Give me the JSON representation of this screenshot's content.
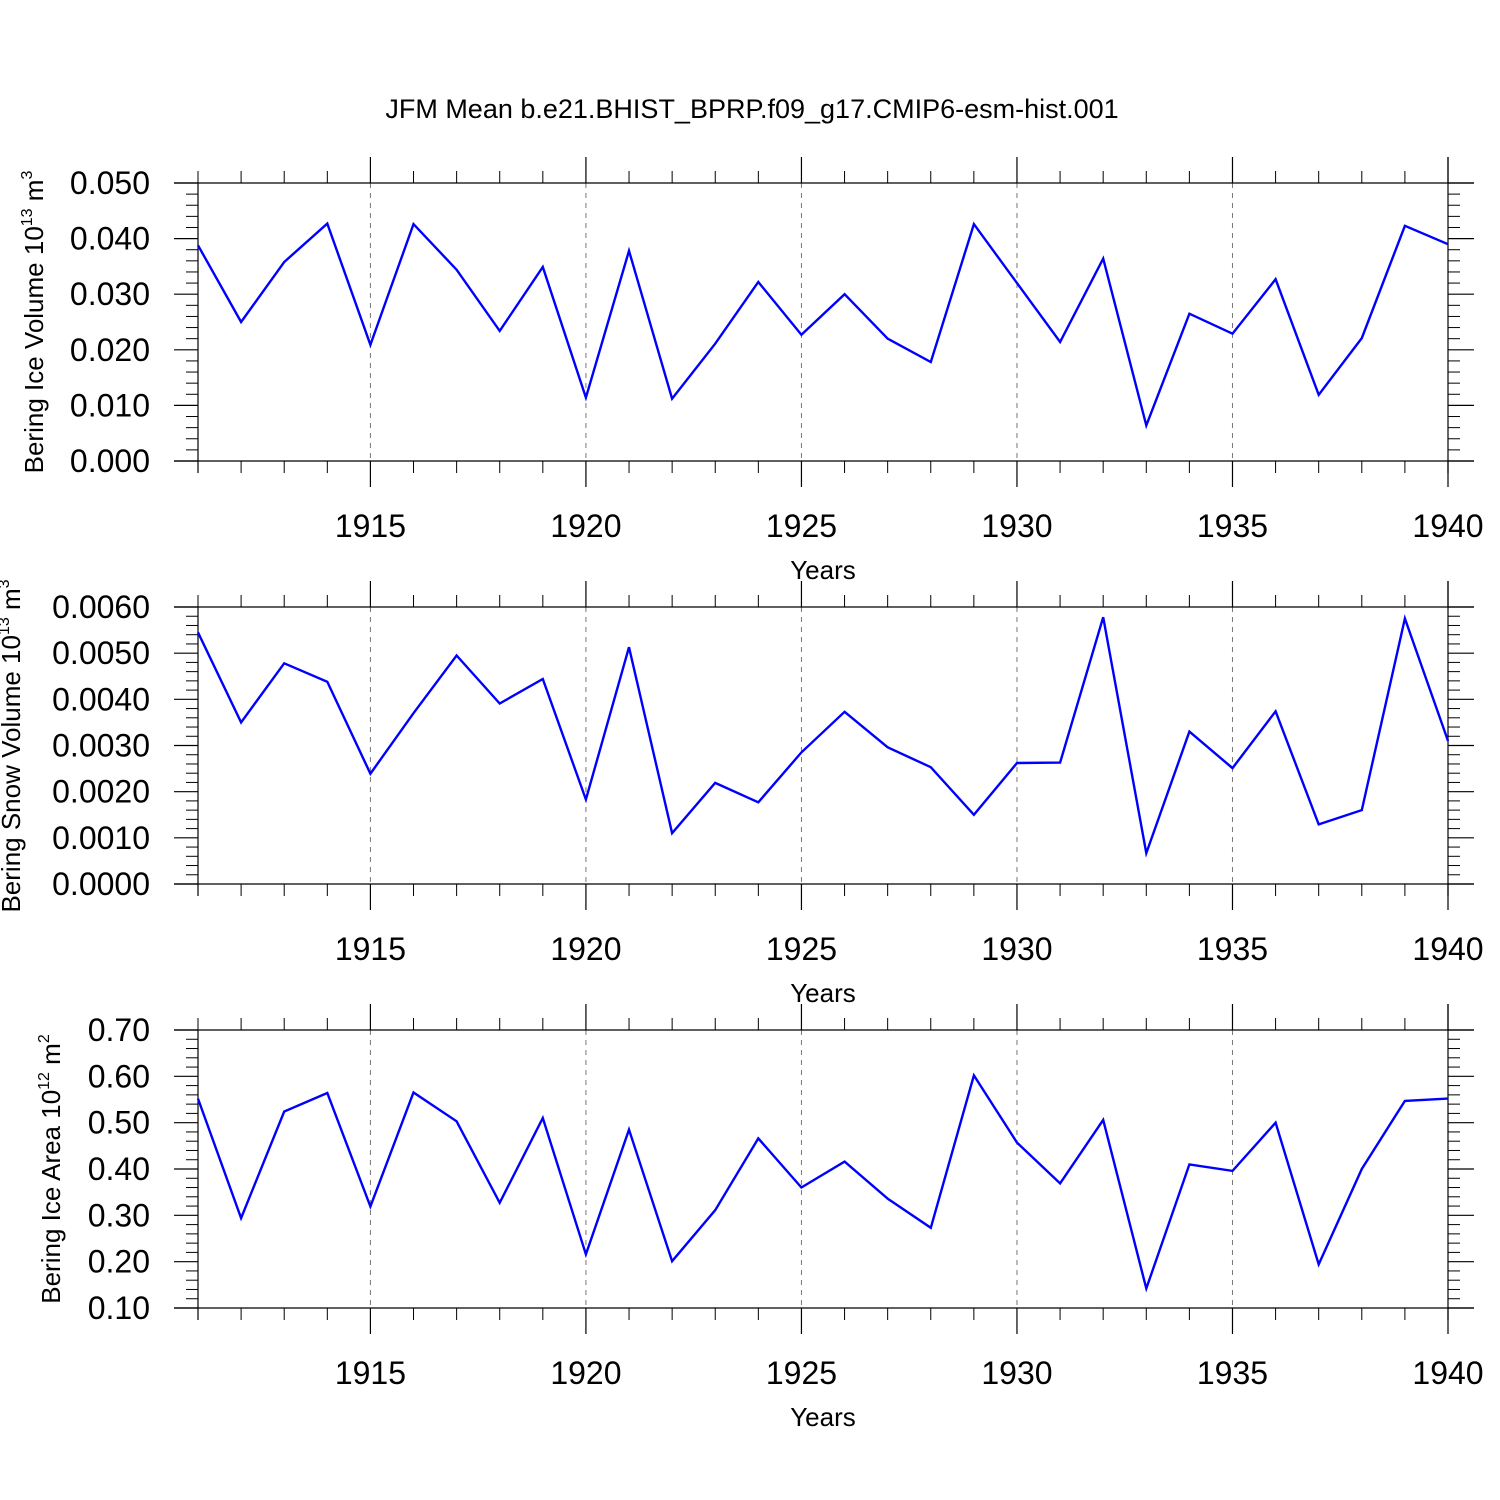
{
  "title": "JFM Mean b.e21.BHIST_BPRP.f09_g17.CMIP6-esm-hist.001",
  "colors": {
    "series": "#0000ff",
    "axis": "#000000",
    "grid": "#777777"
  },
  "chart_data": [
    {
      "type": "line",
      "ylabel_main": "Bering Ice Volume 10",
      "ylabel_exp": "13",
      "ylabel_unit": " m",
      "ylabel_unit_exp": "3",
      "xlabel": "Years",
      "xlim": [
        1911,
        1940
      ],
      "ylim": [
        0,
        0.05
      ],
      "x_ticks": [
        1915,
        1920,
        1925,
        1930,
        1935,
        1940
      ],
      "x_tick_labels": [
        "1915",
        "1920",
        "1925",
        "1930",
        "1935",
        "1940"
      ],
      "y_ticks": [
        0,
        0.01,
        0.02,
        0.03,
        0.04,
        0.05
      ],
      "y_tick_labels": [
        "0.000",
        "0.010",
        "0.020",
        "0.030",
        "0.040",
        "0.050"
      ],
      "x": [
        1911,
        1912,
        1913,
        1914,
        1915,
        1916,
        1917,
        1918,
        1919,
        1920,
        1921,
        1922,
        1923,
        1924,
        1925,
        1926,
        1927,
        1928,
        1929,
        1930,
        1931,
        1932,
        1933,
        1934,
        1935,
        1936,
        1937,
        1938,
        1939,
        1940
      ],
      "values": [
        0.0388,
        0.025,
        0.0358,
        0.0427,
        0.0209,
        0.0426,
        0.0344,
        0.0234,
        0.0349,
        0.0114,
        0.0378,
        0.0112,
        0.0211,
        0.0322,
        0.0227,
        0.03,
        0.022,
        0.0178,
        0.0426,
        0.032,
        0.0214,
        0.0364,
        0.0064,
        0.0265,
        0.0229,
        0.0327,
        0.0119,
        0.0221,
        0.0423,
        0.039
      ]
    },
    {
      "type": "line",
      "ylabel_main": "Bering Snow Volume 10",
      "ylabel_exp": "13",
      "ylabel_unit": " m",
      "ylabel_unit_exp": "3",
      "xlabel": "Years",
      "xlim": [
        1911,
        1940
      ],
      "ylim": [
        0,
        0.006
      ],
      "x_ticks": [
        1915,
        1920,
        1925,
        1930,
        1935,
        1940
      ],
      "x_tick_labels": [
        "1915",
        "1920",
        "1925",
        "1930",
        "1935",
        "1940"
      ],
      "y_ticks": [
        0,
        0.001,
        0.002,
        0.003,
        0.004,
        0.005,
        0.006
      ],
      "y_tick_labels": [
        "0.0000",
        "0.0010",
        "0.0020",
        "0.0030",
        "0.0040",
        "0.0050",
        "0.0060"
      ],
      "x": [
        1911,
        1912,
        1913,
        1914,
        1915,
        1916,
        1917,
        1918,
        1919,
        1920,
        1921,
        1922,
        1923,
        1924,
        1925,
        1926,
        1927,
        1928,
        1929,
        1930,
        1931,
        1932,
        1933,
        1934,
        1935,
        1936,
        1937,
        1938,
        1939,
        1940
      ],
      "values": [
        0.00545,
        0.0035,
        0.00478,
        0.00438,
        0.00239,
        0.0037,
        0.00495,
        0.00391,
        0.00444,
        0.00183,
        0.00513,
        0.0011,
        0.00219,
        0.00177,
        0.00285,
        0.00373,
        0.00296,
        0.00253,
        0.0015,
        0.00262,
        0.00263,
        0.00578,
        0.00067,
        0.0033,
        0.00251,
        0.00374,
        0.00129,
        0.0016,
        0.00575,
        0.0031
      ]
    },
    {
      "type": "line",
      "ylabel_main": "Bering Ice Area 10",
      "ylabel_exp": "12",
      "ylabel_unit": " m",
      "ylabel_unit_exp": "2",
      "xlabel": "Years",
      "xlim": [
        1911,
        1940
      ],
      "ylim": [
        0.1,
        0.7
      ],
      "x_ticks": [
        1915,
        1920,
        1925,
        1930,
        1935,
        1940
      ],
      "x_tick_labels": [
        "1915",
        "1920",
        "1925",
        "1930",
        "1935",
        "1940"
      ],
      "y_ticks": [
        0.1,
        0.2,
        0.3,
        0.4,
        0.5,
        0.6,
        0.7
      ],
      "y_tick_labels": [
        "0.10",
        "0.20",
        "0.30",
        "0.40",
        "0.50",
        "0.60",
        "0.70"
      ],
      "x": [
        1911,
        1912,
        1913,
        1914,
        1915,
        1916,
        1917,
        1918,
        1919,
        1920,
        1921,
        1922,
        1923,
        1924,
        1925,
        1926,
        1927,
        1928,
        1929,
        1930,
        1931,
        1932,
        1933,
        1934,
        1935,
        1936,
        1937,
        1938,
        1939,
        1940
      ],
      "values": [
        0.552,
        0.294,
        0.524,
        0.564,
        0.319,
        0.565,
        0.503,
        0.327,
        0.51,
        0.216,
        0.485,
        0.201,
        0.311,
        0.466,
        0.36,
        0.416,
        0.336,
        0.273,
        0.602,
        0.457,
        0.369,
        0.506,
        0.142,
        0.41,
        0.396,
        0.5,
        0.194,
        0.4,
        0.547,
        0.552
      ]
    }
  ]
}
